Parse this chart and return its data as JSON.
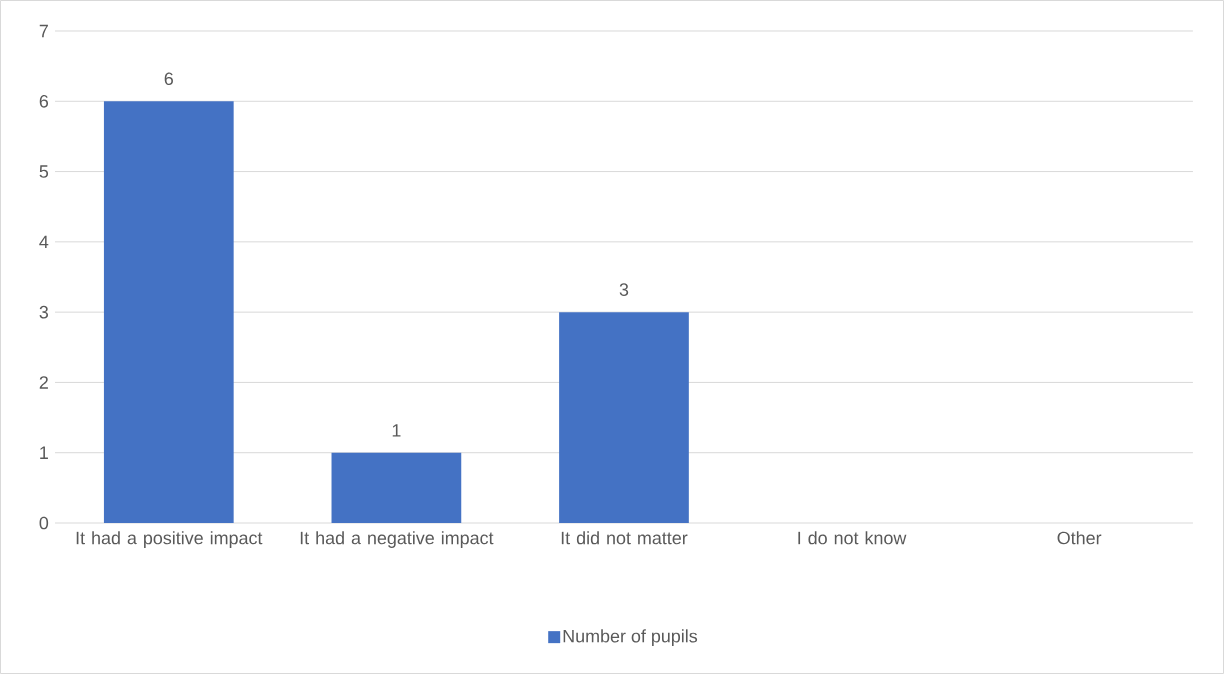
{
  "chart_data": {
    "type": "bar",
    "categories": [
      "It had a positive impact",
      "It had a negative impact",
      "It did not matter",
      "I do not know",
      "Other"
    ],
    "series": [
      {
        "name": "Number of pupils",
        "color": "#4472c4",
        "values": [
          6,
          1,
          3,
          0,
          0
        ],
        "value_labels": [
          "6",
          "1",
          "3",
          null,
          null
        ]
      }
    ],
    "ylim": [
      0,
      7
    ],
    "yticks": [
      0,
      1,
      2,
      3,
      4,
      5,
      6,
      7
    ],
    "grid": "y",
    "legend": "bottom"
  }
}
